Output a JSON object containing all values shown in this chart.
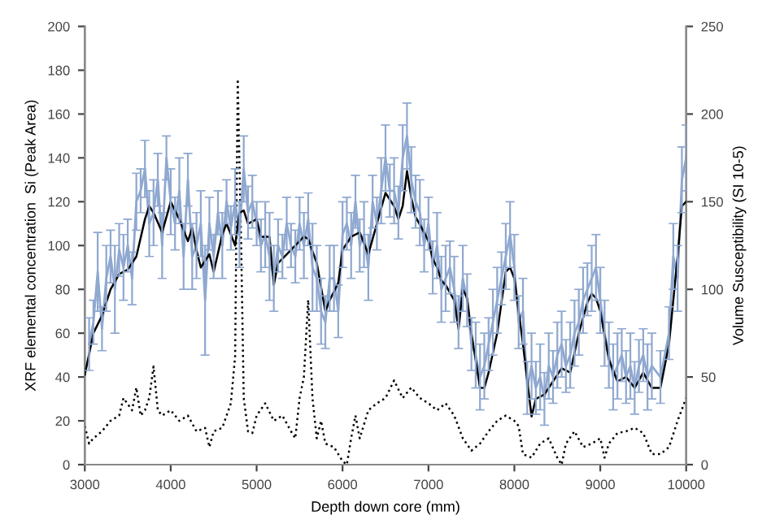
{
  "chart_data": {
    "type": "line",
    "xlabel": "Depth down core (mm)",
    "ylabel": "XRF elemental concentration  Si (Peak Area)",
    "y2label": "Volume Susceptibility (SI 10-5)",
    "xlim": [
      3000,
      10000
    ],
    "xticks": [
      3000,
      4000,
      5000,
      6000,
      7000,
      8000,
      9000,
      10000
    ],
    "ylim": [
      0,
      200
    ],
    "yticks": [
      0,
      20,
      40,
      60,
      80,
      100,
      120,
      140,
      160,
      180,
      200
    ],
    "y2lim": [
      0,
      250
    ],
    "y2ticks": [
      0,
      50,
      100,
      150,
      200,
      250
    ],
    "grid": false,
    "legend": false,
    "marker": "none",
    "series": [
      {
        "color": "#8fa8d0",
        "line_style": "solid",
        "x": [
          3050,
          3100,
          3150,
          3200,
          3250,
          3300,
          3350,
          3400,
          3450,
          3500,
          3550,
          3600,
          3650,
          3700,
          3750,
          3800,
          3850,
          3900,
          3950,
          4000,
          4050,
          4100,
          4150,
          4200,
          4250,
          4300,
          4350,
          4400,
          4450,
          4500,
          4550,
          4600,
          4650,
          4700,
          4750,
          4800,
          4850,
          4900,
          4950,
          5000,
          5050,
          5100,
          5150,
          5200,
          5250,
          5300,
          5350,
          5400,
          5450,
          5500,
          5550,
          5600,
          5650,
          5700,
          5750,
          5800,
          5850,
          5900,
          5950,
          6000,
          6050,
          6100,
          6150,
          6200,
          6250,
          6300,
          6350,
          6400,
          6450,
          6500,
          6550,
          6600,
          6650,
          6700,
          6750,
          6800,
          6850,
          6900,
          6950,
          7000,
          7050,
          7100,
          7150,
          7200,
          7250,
          7300,
          7350,
          7400,
          7450,
          7500,
          7550,
          7600,
          7650,
          7700,
          7750,
          7800,
          7850,
          7900,
          7950,
          8000,
          8050,
          8100,
          8150,
          8200,
          8250,
          8300,
          8350,
          8400,
          8450,
          8500,
          8550,
          8600,
          8650,
          8700,
          8750,
          8800,
          8850,
          8900,
          8950,
          9000,
          9050,
          9100,
          9150,
          9200,
          9250,
          9300,
          9350,
          9400,
          9450,
          9500,
          9550,
          9600,
          9700,
          9800,
          9850,
          9900,
          9950,
          10000
        ],
        "values": [
          55,
          65,
          88,
          62,
          85,
          95,
          80,
          98,
          90,
          100,
          85,
          120,
          125,
          135,
          110,
          115,
          130,
          100,
          140,
          120,
          110,
          125,
          95,
          130,
          95,
          100,
          110,
          75,
          110,
          95,
          115,
          100,
          120,
          108,
          120,
          105,
          135,
          115,
          120,
          110,
          100,
          105,
          95,
          85,
          100,
          95,
          110,
          100,
          95,
          110,
          100,
          112,
          90,
          85,
          70,
          65,
          85,
          85,
          70,
          105,
          110,
          100,
          120,
          100,
          105,
          90,
          120,
          110,
          125,
          140,
          125,
          125,
          115,
          140,
          150,
          130,
          120,
          115,
          100,
          110,
          90,
          100,
          80,
          85,
          90,
          80,
          65,
          85,
          75,
          55,
          50,
          40,
          45,
          55,
          65,
          75,
          85,
          95,
          105,
          90,
          65,
          70,
          35,
          45,
          35,
          40,
          30,
          45,
          40,
          50,
          55,
          45,
          50,
          60,
          65,
          75,
          80,
          85,
          90,
          75,
          60,
          50,
          40,
          45,
          50,
          40,
          45,
          35,
          45,
          50,
          40,
          45,
          40,
          60,
          95,
          85,
          130,
          140
        ],
        "errors": [
          12,
          10,
          18,
          10,
          15,
          12,
          20,
          12,
          15,
          12,
          12,
          13,
          10,
          13,
          15,
          15,
          12,
          15,
          10,
          15,
          12,
          15,
          15,
          12,
          15,
          15,
          15,
          25,
          12,
          10,
          10,
          15,
          10,
          10,
          15,
          15,
          15,
          12,
          12,
          10,
          12,
          15,
          20,
          15,
          12,
          10,
          12,
          10,
          12,
          12,
          15,
          12,
          20,
          15,
          15,
          12,
          15,
          15,
          12,
          15,
          12,
          15,
          12,
          12,
          15,
          15,
          12,
          12,
          15,
          15,
          12,
          15,
          12,
          15,
          15,
          15,
          12,
          15,
          12,
          12,
          12,
          15,
          15,
          15,
          12,
          15,
          12,
          15,
          12,
          12,
          15,
          15,
          15,
          12,
          15,
          15,
          12,
          15,
          15,
          15,
          12,
          15,
          12,
          15,
          12,
          15,
          12,
          15,
          12,
          15,
          15,
          12,
          15,
          15,
          15,
          15,
          12,
          15,
          15,
          15,
          15,
          15,
          15,
          15,
          12,
          12,
          15,
          12,
          12,
          12,
          15,
          15,
          12,
          12,
          15,
          15,
          15,
          15
        ]
      },
      {
        "color": "#000000",
        "line_style": "solid",
        "x": [
          3000,
          3100,
          3200,
          3300,
          3400,
          3500,
          3600,
          3700,
          3750,
          3800,
          3900,
          4000,
          4100,
          4200,
          4250,
          4300,
          4350,
          4450,
          4500,
          4600,
          4650,
          4700,
          4750,
          4800,
          4850,
          4900,
          5000,
          5050,
          5150,
          5200,
          5250,
          5350,
          5450,
          5550,
          5600,
          5700,
          5800,
          5850,
          5950,
          6000,
          6100,
          6200,
          6300,
          6400,
          6500,
          6600,
          6650,
          6700,
          6750,
          6800,
          6850,
          6950,
          7000,
          7050,
          7100,
          7150,
          7200,
          7300,
          7350,
          7400,
          7450,
          7500,
          7600,
          7650,
          7700,
          7800,
          7900,
          7950,
          8000,
          8100,
          8200,
          8250,
          8350,
          8450,
          8550,
          8650,
          8750,
          8850,
          8900,
          8950,
          9000,
          9100,
          9200,
          9300,
          9400,
          9500,
          9600,
          9700,
          9800,
          9900,
          9950,
          10000
        ],
        "values": [
          41,
          60,
          68,
          80,
          87,
          89,
          95,
          112,
          118,
          115,
          106,
          120,
          112,
          102,
          108,
          98,
          90,
          96,
          88,
          105,
          110,
          105,
          100,
          115,
          116,
          110,
          112,
          104,
          104,
          82,
          92,
          96,
          100,
          104,
          103,
          92,
          70,
          75,
          83,
          98,
          104,
          106,
          96,
          110,
          124,
          118,
          112,
          118,
          134,
          122,
          113,
          106,
          102,
          94,
          90,
          84,
          82,
          75,
          62,
          80,
          76,
          60,
          35,
          35,
          42,
          60,
          88,
          90,
          85,
          55,
          22,
          30,
          32,
          38,
          44,
          42,
          60,
          74,
          78,
          76,
          70,
          48,
          38,
          40,
          35,
          42,
          35,
          35,
          55,
          95,
          118,
          120
        ]
      },
      {
        "color": "#000000",
        "line_style": "dotted",
        "axis": "y2",
        "x": [
          3000,
          3050,
          3100,
          3200,
          3300,
          3400,
          3450,
          3550,
          3600,
          3650,
          3700,
          3750,
          3800,
          3850,
          3900,
          4000,
          4100,
          4200,
          4300,
          4400,
          4450,
          4500,
          4600,
          4700,
          4750,
          4780,
          4820,
          4850,
          4900,
          4950,
          5000,
          5100,
          5200,
          5300,
          5400,
          5450,
          5500,
          5550,
          5600,
          5650,
          5700,
          5750,
          5800,
          5900,
          6000,
          6050,
          6100,
          6150,
          6200,
          6300,
          6400,
          6500,
          6600,
          6700,
          6800,
          6900,
          7000,
          7100,
          7200,
          7300,
          7400,
          7500,
          7600,
          7700,
          7800,
          7900,
          8000,
          8050,
          8100,
          8200,
          8300,
          8400,
          8500,
          8550,
          8600,
          8700,
          8800,
          8900,
          9000,
          9050,
          9100,
          9200,
          9300,
          9400,
          9500,
          9600,
          9700,
          9800,
          9900,
          10000
        ],
        "values": [
          22,
          12,
          15,
          19,
          25,
          28,
          38,
          31,
          44,
          28,
          31,
          38,
          56,
          31,
          28,
          31,
          25,
          28,
          19,
          21,
          10,
          19,
          21,
          35,
          62,
          220,
          125,
          38,
          19,
          18,
          28,
          35,
          25,
          28,
          19,
          15,
          38,
          50,
          94,
          38,
          15,
          25,
          12,
          10,
          2,
          0,
          15,
          28,
          15,
          31,
          35,
          38,
          48,
          38,
          44,
          38,
          35,
          31,
          35,
          28,
          15,
          8,
          12,
          19,
          25,
          28,
          25,
          22,
          6,
          4,
          12,
          15,
          4,
          0,
          12,
          19,
          10,
          12,
          15,
          4,
          12,
          18,
          19,
          21,
          18,
          6,
          6,
          10,
          25,
          38
        ]
      }
    ]
  }
}
